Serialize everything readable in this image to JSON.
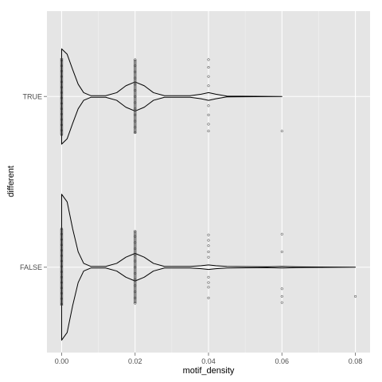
{
  "chart_data": {
    "type": "violin",
    "orientation": "horizontal",
    "xlabel": "motif_density",
    "ylabel": "different",
    "xlim": [
      -0.004,
      0.084
    ],
    "x_ticks": [
      0.0,
      0.02,
      0.04,
      0.06,
      0.08
    ],
    "x_tick_labels": [
      "0.00",
      "0.02",
      "0.04",
      "0.06",
      "0.08"
    ],
    "categories": [
      "TRUE",
      "FALSE"
    ],
    "grid": true,
    "background": "#e5e5e5",
    "colors": {
      "panel": "#e5e5e5",
      "grid_major": "#ffffff",
      "grid_minor": "#f2f2f2",
      "violin": "#000000",
      "point": "#333333"
    },
    "groups": [
      {
        "category": "TRUE",
        "max": 0.06,
        "density": [
          [
            0.0,
            0.62
          ],
          [
            0.0015,
            0.55
          ],
          [
            0.003,
            0.35
          ],
          [
            0.0045,
            0.16
          ],
          [
            0.006,
            0.05
          ],
          [
            0.008,
            0.01
          ],
          [
            0.012,
            0.01
          ],
          [
            0.015,
            0.05
          ],
          [
            0.0175,
            0.14
          ],
          [
            0.02,
            0.19
          ],
          [
            0.0225,
            0.14
          ],
          [
            0.025,
            0.05
          ],
          [
            0.028,
            0.01
          ],
          [
            0.035,
            0.01
          ],
          [
            0.038,
            0.03
          ],
          [
            0.04,
            0.05
          ],
          [
            0.042,
            0.03
          ],
          [
            0.045,
            0.005
          ],
          [
            0.06,
            0.0
          ]
        ],
        "points": [
          {
            "x": 0.0,
            "offsets": [
              -0.47,
              -0.4,
              -0.33,
              -0.26,
              -0.19,
              -0.12,
              -0.05,
              0.02,
              0.09,
              0.16,
              0.23,
              0.3,
              0.37,
              0.44,
              0.5
            ]
          },
          {
            "x": 0.02,
            "offsets": [
              -0.48,
              -0.4,
              -0.32,
              -0.24,
              -0.16,
              -0.08,
              0.0,
              0.08,
              0.16,
              0.24,
              0.32,
              0.4,
              0.47
            ]
          },
          {
            "x": 0.04,
            "offsets": [
              -0.48,
              -0.38,
              -0.26,
              -0.14,
              0.12,
              0.24,
              0.36,
              0.45
            ]
          },
          {
            "x": 0.06,
            "offsets": [
              0.45
            ]
          }
        ]
      },
      {
        "category": "FALSE",
        "max": 0.08,
        "density": [
          [
            0.0,
            0.95
          ],
          [
            0.0015,
            0.85
          ],
          [
            0.003,
            0.5
          ],
          [
            0.0045,
            0.2
          ],
          [
            0.006,
            0.05
          ],
          [
            0.008,
            0.01
          ],
          [
            0.012,
            0.01
          ],
          [
            0.015,
            0.05
          ],
          [
            0.0175,
            0.13
          ],
          [
            0.02,
            0.18
          ],
          [
            0.0225,
            0.13
          ],
          [
            0.025,
            0.05
          ],
          [
            0.028,
            0.01
          ],
          [
            0.035,
            0.01
          ],
          [
            0.038,
            0.02
          ],
          [
            0.04,
            0.03
          ],
          [
            0.042,
            0.02
          ],
          [
            0.045,
            0.01
          ],
          [
            0.056,
            0.005
          ],
          [
            0.06,
            0.01
          ],
          [
            0.064,
            0.005
          ],
          [
            0.08,
            0.0
          ]
        ],
        "points": [
          {
            "x": 0.0,
            "offsets": [
              -0.5,
              -0.43,
              -0.36,
              -0.29,
              -0.22,
              -0.15,
              -0.08,
              -0.01,
              0.06,
              0.13,
              0.2,
              0.27,
              0.34,
              0.41,
              0.48
            ]
          },
          {
            "x": 0.02,
            "offsets": [
              -0.47,
              -0.4,
              -0.32,
              -0.24,
              -0.16,
              -0.08,
              0.0,
              0.08,
              0.16,
              0.24,
              0.32,
              0.4,
              0.47
            ]
          },
          {
            "x": 0.04,
            "offsets": [
              -0.42,
              -0.35,
              -0.28,
              -0.2,
              -0.13,
              0.13,
              0.2,
              0.26,
              0.4
            ]
          },
          {
            "x": 0.06,
            "offsets": [
              -0.43,
              -0.2,
              0.28,
              0.38,
              0.46
            ]
          },
          {
            "x": 0.08,
            "offsets": [
              0.38
            ]
          }
        ]
      }
    ]
  }
}
